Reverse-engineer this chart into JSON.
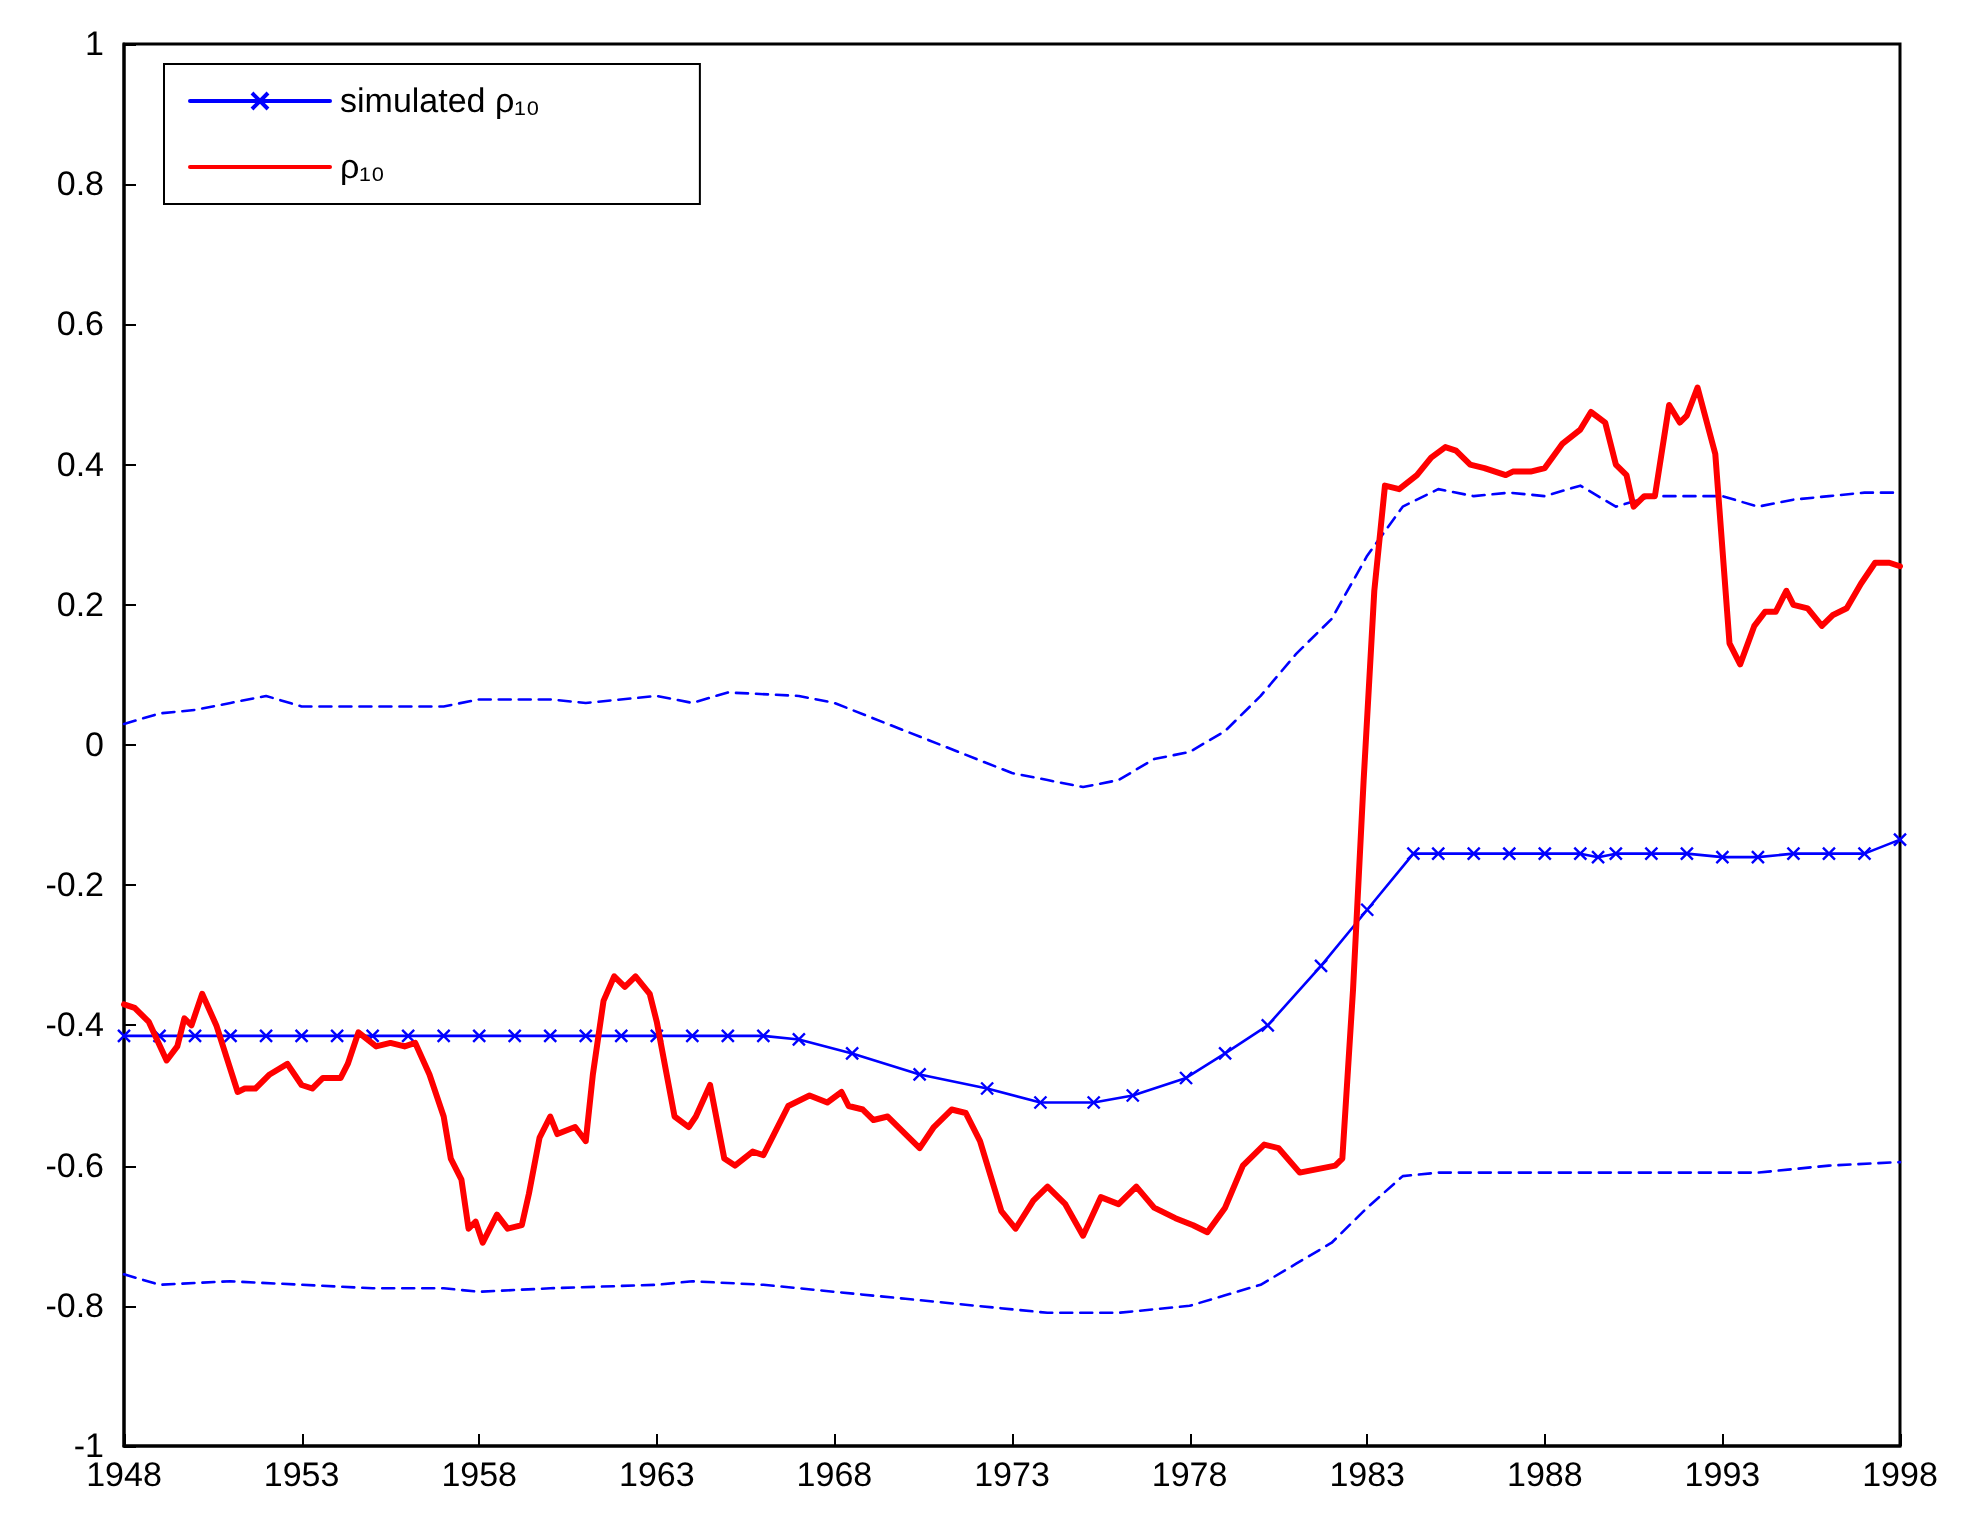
{
  "chart_data": {
    "type": "line",
    "xlim": [
      1948,
      1998
    ],
    "xticks": [
      1948,
      1953,
      1958,
      1963,
      1968,
      1973,
      1978,
      1983,
      1988,
      1993,
      1998
    ],
    "ylim": [
      -1,
      1
    ],
    "yticks": [
      -1,
      -0.8,
      -0.6,
      -0.4,
      -0.2,
      0,
      0.2,
      0.4,
      0.6,
      0.8,
      1
    ],
    "grid": false,
    "legend": "top left",
    "series": [
      {
        "name": "simulated ρ₁₀",
        "color": "#0000ff",
        "marker": "cross",
        "line_style": "solid",
        "x": [
          1948,
          1949,
          1950,
          1951,
          1952,
          1953,
          1954,
          1955,
          1956,
          1957,
          1958,
          1959,
          1960,
          1961,
          1962,
          1963,
          1964,
          1965,
          1966,
          1967,
          1968.5,
          1970.4,
          1972.3,
          1973.8,
          1975.3,
          1976.4,
          1977.9,
          1979,
          1980.2,
          1981.7,
          1983,
          1984.3,
          1985,
          1986,
          1987,
          1988,
          1989,
          1989.5,
          1990,
          1991,
          1992,
          1993,
          1994,
          1995,
          1996,
          1997,
          1998
        ],
        "values": [
          -0.415,
          -0.415,
          -0.415,
          -0.415,
          -0.415,
          -0.415,
          -0.415,
          -0.415,
          -0.415,
          -0.415,
          -0.415,
          -0.415,
          -0.415,
          -0.415,
          -0.415,
          -0.415,
          -0.415,
          -0.415,
          -0.415,
          -0.42,
          -0.44,
          -0.47,
          -0.49,
          -0.51,
          -0.51,
          -0.5,
          -0.475,
          -0.44,
          -0.4,
          -0.315,
          -0.235,
          -0.155,
          -0.155,
          -0.155,
          -0.155,
          -0.155,
          -0.155,
          -0.16,
          -0.155,
          -0.155,
          -0.155,
          -0.16,
          -0.16,
          -0.155,
          -0.155,
          -0.155,
          -0.135
        ]
      },
      {
        "color": "#0000ff",
        "marker": "none",
        "line_style": "dashed",
        "x": [
          1948,
          1949,
          1950,
          1951,
          1952,
          1953,
          1955,
          1957,
          1958,
          1960,
          1961,
          1963,
          1964,
          1965,
          1967,
          1968,
          1969,
          1970,
          1971,
          1972,
          1973,
          1974,
          1975,
          1976,
          1977,
          1978,
          1979,
          1980,
          1981,
          1982,
          1983,
          1984,
          1985,
          1986,
          1987,
          1988,
          1989,
          1990,
          1991,
          1992,
          1993,
          1994,
          1995,
          1996,
          1997,
          1998
        ],
        "values": [
          0.03,
          0.045,
          0.05,
          0.06,
          0.07,
          0.055,
          0.055,
          0.055,
          0.065,
          0.065,
          0.06,
          0.07,
          0.06,
          0.075,
          0.07,
          0.06,
          0.04,
          0.02,
          0.0,
          -0.02,
          -0.04,
          -0.05,
          -0.06,
          -0.05,
          -0.02,
          -0.01,
          0.02,
          0.07,
          0.13,
          0.18,
          0.27,
          0.34,
          0.365,
          0.355,
          0.36,
          0.355,
          0.37,
          0.34,
          0.355,
          0.355,
          0.355,
          0.34,
          0.35,
          0.355,
          0.36,
          0.36
        ]
      },
      {
        "color": "#0000ff",
        "marker": "none",
        "line_style": "dashed",
        "x": [
          1948,
          1949,
          1951,
          1953,
          1955,
          1957,
          1958,
          1960,
          1963,
          1964,
          1966,
          1968,
          1970,
          1972,
          1974,
          1976,
          1978,
          1979,
          1980,
          1981,
          1982,
          1983,
          1984,
          1985,
          1987,
          1988,
          1990,
          1992,
          1994,
          1996,
          1998
        ],
        "values": [
          -0.755,
          -0.77,
          -0.765,
          -0.77,
          -0.775,
          -0.775,
          -0.78,
          -0.775,
          -0.77,
          -0.765,
          -0.77,
          -0.78,
          -0.79,
          -0.8,
          -0.81,
          -0.81,
          -0.8,
          -0.785,
          -0.77,
          -0.74,
          -0.71,
          -0.66,
          -0.615,
          -0.61,
          -0.61,
          -0.61,
          -0.61,
          -0.61,
          -0.61,
          -0.6,
          -0.595
        ]
      },
      {
        "name": "ρ₁₀",
        "color": "#ff0000",
        "marker": "none",
        "line_style": "solid",
        "x": [
          1948,
          1948.3,
          1948.7,
          1949.2,
          1949.5,
          1949.7,
          1949.9,
          1950.2,
          1950.6,
          1951.2,
          1951.4,
          1951.7,
          1952.1,
          1952.6,
          1953,
          1953.3,
          1953.6,
          1954.1,
          1954.3,
          1954.6,
          1955.1,
          1955.5,
          1955.9,
          1956.2,
          1956.6,
          1957,
          1957.2,
          1957.5,
          1957.7,
          1957.9,
          1958.1,
          1958.5,
          1958.8,
          1959.2,
          1959.4,
          1959.7,
          1960,
          1960.2,
          1960.7,
          1961,
          1961.2,
          1961.5,
          1961.8,
          1962.1,
          1962.4,
          1962.8,
          1963,
          1963.5,
          1963.9,
          1964.1,
          1964.5,
          1964.9,
          1965.2,
          1965.7,
          1966,
          1966.3,
          1966.7,
          1967.3,
          1967.8,
          1968.2,
          1968.4,
          1968.8,
          1969.1,
          1969.5,
          1969.8,
          1970.4,
          1970.8,
          1971.3,
          1971.7,
          1972.1,
          1972.7,
          1973.1,
          1973.6,
          1974,
          1974.5,
          1975,
          1975.5,
          1976,
          1976.5,
          1977,
          1977.6,
          1978.1,
          1978.5,
          1979,
          1979.5,
          1980.1,
          1980.5,
          1981.1,
          1981.6,
          1982.1,
          1982.3,
          1982.6,
          1982.9,
          1983.2,
          1983.5,
          1983.9,
          1984.4,
          1984.8,
          1985.2,
          1985.5,
          1985.9,
          1986.3,
          1986.9,
          1987.1,
          1987.6,
          1988,
          1988.5,
          1989,
          1989.3,
          1989.7,
          1990,
          1990.3,
          1990.5,
          1990.8,
          1991.1,
          1991.5,
          1991.8,
          1992,
          1992.3,
          1992.8,
          1993.2,
          1993.5,
          1993.9,
          1994.2,
          1994.5,
          1994.8,
          1995,
          1995.4,
          1995.8,
          1996.1,
          1996.5,
          1996.9,
          1997.3,
          1997.7,
          1998
        ],
        "values": [
          -0.37,
          -0.375,
          -0.395,
          -0.45,
          -0.43,
          -0.39,
          -0.4,
          -0.355,
          -0.4,
          -0.495,
          -0.49,
          -0.49,
          -0.47,
          -0.455,
          -0.485,
          -0.49,
          -0.475,
          -0.475,
          -0.455,
          -0.41,
          -0.43,
          -0.425,
          -0.43,
          -0.425,
          -0.47,
          -0.53,
          -0.59,
          -0.62,
          -0.69,
          -0.68,
          -0.71,
          -0.67,
          -0.69,
          -0.685,
          -0.64,
          -0.56,
          -0.53,
          -0.555,
          -0.545,
          -0.565,
          -0.47,
          -0.365,
          -0.33,
          -0.345,
          -0.33,
          -0.355,
          -0.395,
          -0.53,
          -0.545,
          -0.53,
          -0.485,
          -0.59,
          -0.6,
          -0.58,
          -0.585,
          -0.555,
          -0.515,
          -0.5,
          -0.51,
          -0.495,
          -0.515,
          -0.52,
          -0.535,
          -0.53,
          -0.545,
          -0.575,
          -0.545,
          -0.52,
          -0.525,
          -0.565,
          -0.665,
          -0.69,
          -0.65,
          -0.63,
          -0.655,
          -0.7,
          -0.645,
          -0.655,
          -0.63,
          -0.66,
          -0.675,
          -0.685,
          -0.695,
          -0.66,
          -0.6,
          -0.57,
          -0.575,
          -0.61,
          -0.605,
          -0.6,
          -0.59,
          -0.35,
          -0.05,
          0.22,
          0.37,
          0.365,
          0.385,
          0.41,
          0.425,
          0.42,
          0.4,
          0.395,
          0.385,
          0.39,
          0.39,
          0.395,
          0.43,
          0.45,
          0.475,
          0.46,
          0.4,
          0.385,
          0.34,
          0.355,
          0.355,
          0.485,
          0.46,
          0.47,
          0.51,
          0.415,
          0.145,
          0.115,
          0.17,
          0.19,
          0.19,
          0.22,
          0.2,
          0.195,
          0.17,
          0.185,
          0.195,
          0.23,
          0.26,
          0.26,
          0.255
        ]
      }
    ]
  }
}
